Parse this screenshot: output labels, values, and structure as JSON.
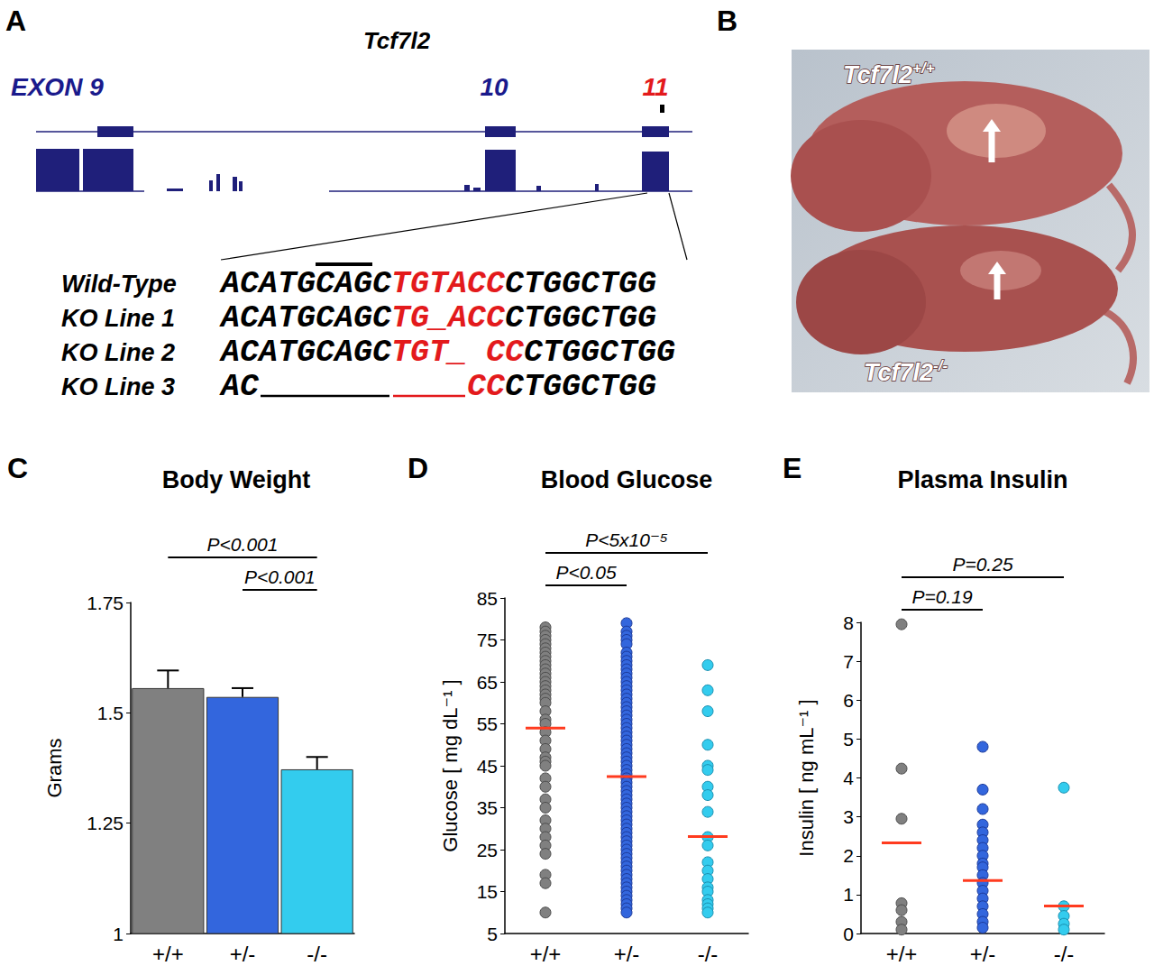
{
  "figure": {
    "panel_a": {
      "letter": "A",
      "title": "Tcf7l2",
      "exons": [
        {
          "label": "EXON 9",
          "color": "#1a1a8c"
        },
        {
          "label": "10",
          "color": "#1a1a8c"
        },
        {
          "label": "11",
          "color": "#e31a1c"
        }
      ],
      "sequences": [
        {
          "label": "Wild-Type",
          "segments": [
            {
              "text": "ACATGCAGC",
              "color": "#000000"
            },
            {
              "text": "TGTACC",
              "color": "#e31a1c"
            },
            {
              "text": "CTGGCTGG",
              "color": "#000000"
            }
          ]
        },
        {
          "label": "KO Line 1",
          "segments": [
            {
              "text": "ACATGCAGC",
              "color": "#000000"
            },
            {
              "text": "TG_ACC",
              "color": "#e31a1c"
            },
            {
              "text": "CTGGCTGG",
              "color": "#000000"
            }
          ]
        },
        {
          "label": "KO Line 2",
          "segments": [
            {
              "text": "ACATGCAGC",
              "color": "#000000"
            },
            {
              "text": "TGT_ CC",
              "color": "#e31a1c"
            },
            {
              "text": "CTGGCTGG",
              "color": "#000000"
            }
          ]
        },
        {
          "label": "KO Line 3",
          "segments": [
            {
              "text": "AC",
              "color": "#000000"
            },
            {
              "deleted": 7,
              "color": "#000000"
            },
            {
              "deleted": 4,
              "color": "#e31a1c"
            },
            {
              "text": "CC",
              "color": "#e31a1c"
            },
            {
              "text": "CTGGCTGG",
              "color": "#000000"
            }
          ]
        }
      ]
    },
    "panel_b": {
      "letter": "B",
      "labels": [
        {
          "gene": "Tcf7l2",
          "genotype": "+/+"
        },
        {
          "gene": "Tcf7l2",
          "genotype": "-/-"
        }
      ]
    }
  },
  "chart_data": [
    {
      "panel": "C",
      "type": "bar",
      "title": "Body Weight",
      "ylabel": "Grams",
      "categories": [
        "+/+",
        "+/-",
        "-/-"
      ],
      "values": [
        1.556,
        1.536,
        1.372
      ],
      "errors": [
        0.04,
        0.02,
        0.028
      ],
      "colors": [
        "#808080",
        "#3366dd",
        "#33ccee"
      ],
      "ylim": [
        1,
        1.75
      ],
      "yticks": [
        1,
        1.25,
        1.5,
        1.75
      ],
      "annotations": [
        {
          "text": "P<0.001",
          "from": "+/+",
          "to": "-/-"
        },
        {
          "text": "P<0.001",
          "from": "+/-",
          "to": "-/-"
        }
      ]
    },
    {
      "panel": "D",
      "type": "scatter",
      "title": "Blood Glucose",
      "ylabel": "Glucose [ mg dL⁻¹ ]",
      "categories": [
        "+/+",
        "+/-",
        "-/-"
      ],
      "values": [
        [
          78,
          77,
          76,
          75,
          74,
          73,
          72,
          71,
          70,
          69,
          68,
          67,
          66,
          65,
          64,
          63,
          62,
          61,
          60,
          58,
          56,
          55,
          53,
          51,
          49,
          47,
          46,
          45,
          42,
          40,
          37,
          35,
          32,
          30,
          28,
          26,
          24,
          19,
          17,
          10
        ],
        [
          79,
          77,
          76,
          75,
          74,
          72,
          71,
          70,
          69,
          68,
          67,
          66,
          65,
          64,
          63,
          62,
          61,
          60,
          59,
          58,
          57,
          56,
          55,
          54,
          53,
          52,
          51,
          50,
          49,
          48,
          47,
          46,
          45,
          44,
          43,
          42,
          41,
          40,
          39,
          38,
          37,
          36,
          35,
          34,
          33,
          32,
          31,
          30,
          29,
          28,
          27,
          26,
          25,
          24,
          23,
          22,
          21,
          20,
          19,
          18,
          17,
          16,
          15,
          14,
          13,
          12,
          11,
          10
        ],
        [
          69,
          63,
          58,
          50,
          45,
          44,
          40,
          38,
          34,
          28,
          26,
          22,
          20,
          18,
          16,
          15,
          13,
          12,
          11,
          10
        ]
      ],
      "means": [
        54,
        42.4,
        28.1
      ],
      "colors": [
        "#808080",
        "#3366dd",
        "#33ccee"
      ],
      "ylim": [
        5,
        85
      ],
      "yticks": [
        5,
        15,
        25,
        35,
        45,
        55,
        65,
        75,
        85
      ],
      "annotations": [
        {
          "text": "P<5x10⁻⁵",
          "from": "+/+",
          "to": "-/-"
        },
        {
          "text": "P<0.05",
          "from": "+/+",
          "to": "+/-"
        }
      ]
    },
    {
      "panel": "E",
      "type": "scatter",
      "title": "Plasma Insulin",
      "ylabel": "Insulin [ ng mL⁻¹ ]",
      "categories": [
        "+/+",
        "+/-",
        "-/-"
      ],
      "values": [
        [
          7.95,
          4.24,
          2.95,
          0.78,
          0.6,
          0.3,
          0.1
        ],
        [
          4.8,
          3.7,
          3.2,
          2.8,
          2.6,
          2.4,
          2.2,
          2.0,
          1.8,
          1.7,
          1.5,
          1.3,
          1.1,
          0.9,
          0.7,
          0.5,
          0.3,
          0.15
        ],
        [
          3.75,
          0.7,
          0.45,
          0.25,
          0.1
        ]
      ],
      "means": [
        2.33,
        1.36,
        0.71
      ],
      "colors": [
        "#808080",
        "#3366dd",
        "#33ccee"
      ],
      "ylim": [
        0,
        8
      ],
      "yticks": [
        0,
        1,
        2,
        3,
        4,
        5,
        6,
        7,
        8
      ],
      "annotations": [
        {
          "text": "P=0.25",
          "from": "+/+",
          "to": "-/-"
        },
        {
          "text": "P=0.19",
          "from": "+/+",
          "to": "+/-"
        }
      ]
    }
  ]
}
